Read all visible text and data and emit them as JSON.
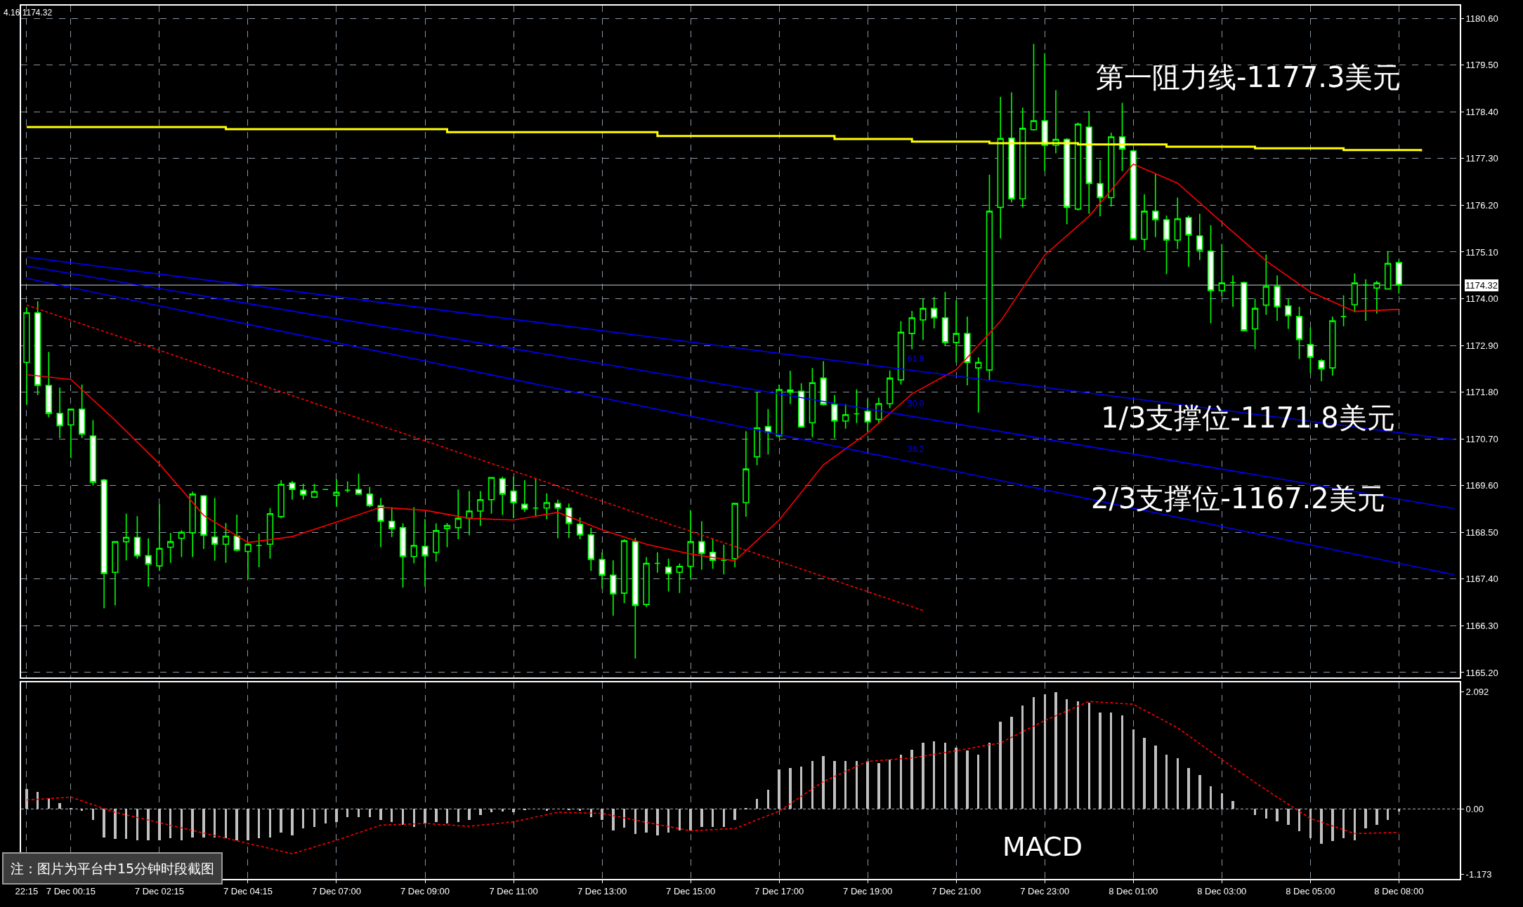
{
  "chart_data": [
    {
      "type": "candlestick",
      "color": "#00ff00",
      "categories": [
        "22:15",
        null,
        null,
        null,
        "7 Dec 00:15",
        null,
        null,
        null,
        null,
        null,
        null,
        null,
        "7 Dec 02:15",
        null,
        null,
        null,
        null,
        null,
        null,
        null,
        "7 Dec 04:15",
        null,
        null,
        null,
        null,
        null,
        null,
        null,
        "7 Dec 07:00",
        null,
        null,
        null,
        null,
        null,
        null,
        null,
        "7 Dec 09:00",
        null,
        null,
        null,
        null,
        null,
        null,
        null,
        "7 Dec 11:00",
        null,
        null,
        null,
        null,
        null,
        null,
        null,
        "7 Dec 13:00",
        null,
        null,
        null,
        null,
        null,
        null,
        null,
        "7 Dec 15:00",
        null,
        null,
        null,
        null,
        null,
        null,
        null,
        "7 Dec 17:00",
        null,
        null,
        null,
        null,
        null,
        null,
        null,
        "7 Dec 19:00",
        null,
        null,
        null,
        null,
        null,
        null,
        null,
        "7 Dec 21:00",
        null,
        null,
        null,
        null,
        null,
        null,
        null,
        "7 Dec 23:00",
        null,
        null,
        null,
        null,
        null,
        null,
        null,
        "8 Dec 01:00",
        null,
        null,
        null,
        null,
        null,
        null,
        null,
        "8 Dec 03:00",
        null,
        null,
        null,
        null,
        null,
        null,
        null,
        "8 Dec 05:00",
        null,
        null,
        null,
        null,
        null,
        null,
        null,
        "8 Dec 08:00",
        null,
        null,
        null,
        null,
        null
      ],
      "ohlc": [
        [
          1172.5,
          1173.8,
          1171.5,
          1173.67
        ],
        [
          1173.67,
          1173.94,
          1171.73,
          1171.96
        ],
        [
          1171.96,
          1172.75,
          1171.21,
          1171.3
        ],
        [
          1171.3,
          1171.91,
          1170.72,
          1171.01
        ],
        [
          1171.03,
          1171.4,
          1170.25,
          1171.4
        ],
        [
          1171.4,
          1171.98,
          1170.72,
          1170.81
        ],
        [
          1170.77,
          1171.14,
          1169.6,
          1169.68
        ],
        [
          1169.73,
          1169.76,
          1166.71,
          1167.53
        ],
        [
          1167.56,
          1168.28,
          1166.78,
          1168.28
        ],
        [
          1168.28,
          1168.94,
          1167.84,
          1168.38
        ],
        [
          1168.38,
          1168.88,
          1167.88,
          1167.95
        ],
        [
          1167.95,
          1168.36,
          1167.22,
          1167.75
        ],
        [
          1167.71,
          1169.16,
          1167.59,
          1168.12
        ],
        [
          1168.15,
          1168.49,
          1167.78,
          1168.28
        ],
        [
          1168.36,
          1168.55,
          1167.92,
          1168.5
        ],
        [
          1168.49,
          1169.46,
          1167.92,
          1169.4
        ],
        [
          1169.36,
          1169.38,
          1168.11,
          1168.43
        ],
        [
          1168.39,
          1169.31,
          1167.83,
          1168.22
        ],
        [
          1168.22,
          1168.72,
          1167.78,
          1168.41
        ],
        [
          1168.41,
          1168.92,
          1168.05,
          1168.08
        ],
        [
          1168.05,
          1168.25,
          1167.4,
          1168.22
        ],
        [
          1168.19,
          1168.47,
          1167.68,
          1168.19
        ],
        [
          1168.22,
          1169.07,
          1167.88,
          1168.94
        ],
        [
          1168.87,
          1169.73,
          1168.83,
          1169.63
        ],
        [
          1169.66,
          1169.71,
          1169.27,
          1169.51
        ],
        [
          1169.49,
          1169.64,
          1169.27,
          1169.38
        ],
        [
          1169.33,
          1169.64,
          1169.31,
          1169.46
        ],
        [
          1169.51,
          1169.51,
          1169.51,
          1169.51
        ],
        [
          1169.37,
          1169.75,
          1169.1,
          1169.44
        ],
        [
          1169.49,
          1169.7,
          1169.44,
          1169.49
        ],
        [
          1169.51,
          1169.88,
          1169.4,
          1169.4
        ],
        [
          1169.4,
          1169.57,
          1169.09,
          1169.13
        ],
        [
          1169.13,
          1169.31,
          1168.15,
          1168.76
        ],
        [
          1168.76,
          1169.09,
          1168.39,
          1168.59
        ],
        [
          1168.61,
          1168.71,
          1167.2,
          1167.93
        ],
        [
          1167.93,
          1169.09,
          1167.77,
          1168.19
        ],
        [
          1168.17,
          1168.81,
          1167.22,
          1167.95
        ],
        [
          1168.03,
          1168.71,
          1167.81,
          1168.54
        ],
        [
          1168.59,
          1168.72,
          1168.15,
          1168.66
        ],
        [
          1168.61,
          1169.51,
          1168.34,
          1168.83
        ],
        [
          1168.83,
          1169.47,
          1168.43,
          1169.0
        ],
        [
          1169.0,
          1169.47,
          1168.65,
          1169.27
        ],
        [
          1169.27,
          1169.79,
          1168.94,
          1169.79
        ],
        [
          1169.76,
          1169.81,
          1168.91,
          1169.4
        ],
        [
          1169.47,
          1169.81,
          1168.83,
          1169.2
        ],
        [
          1169.16,
          1169.73,
          1168.98,
          1169.05
        ],
        [
          1169.07,
          1169.76,
          1168.87,
          1169.07
        ],
        [
          1169.07,
          1169.42,
          1168.81,
          1169.2
        ],
        [
          1169.18,
          1169.27,
          1168.36,
          1169.07
        ],
        [
          1169.07,
          1169.18,
          1168.37,
          1168.71
        ],
        [
          1168.69,
          1168.85,
          1168.34,
          1168.44
        ],
        [
          1168.44,
          1168.61,
          1167.59,
          1167.86
        ],
        [
          1167.86,
          1168.03,
          1167.18,
          1167.49
        ],
        [
          1167.49,
          1167.84,
          1166.54,
          1167.05
        ],
        [
          1167.07,
          1168.34,
          1166.83,
          1168.3
        ],
        [
          1168.28,
          1168.37,
          1165.53,
          1166.78
        ],
        [
          1166.8,
          1167.92,
          1166.74,
          1167.77
        ],
        [
          1167.77,
          1168.03,
          1167.55,
          1167.77
        ],
        [
          1167.68,
          1167.88,
          1167.11,
          1167.53
        ],
        [
          1167.56,
          1167.77,
          1167.07,
          1167.7
        ],
        [
          1167.7,
          1169.02,
          1167.42,
          1168.28
        ],
        [
          1168.28,
          1168.76,
          1167.62,
          1168.0
        ],
        [
          1168.03,
          1168.36,
          1167.64,
          1167.84
        ],
        [
          1167.84,
          1168.21,
          1167.51,
          1167.84
        ],
        [
          1167.88,
          1169.18,
          1167.68,
          1169.18
        ],
        [
          1169.2,
          1170.88,
          1168.87,
          1169.99
        ],
        [
          1170.28,
          1171.8,
          1170.08,
          1170.96
        ],
        [
          1170.99,
          1171.4,
          1170.33,
          1170.86
        ],
        [
          1170.77,
          1171.98,
          1170.74,
          1171.86
        ],
        [
          1171.85,
          1172.3,
          1171.52,
          1171.8
        ],
        [
          1171.82,
          1172.01,
          1170.96,
          1170.98
        ],
        [
          1171.08,
          1172.37,
          1170.74,
          1172.02
        ],
        [
          1172.13,
          1172.53,
          1171.49,
          1171.51
        ],
        [
          1171.51,
          1171.73,
          1170.72,
          1171.12
        ],
        [
          1171.12,
          1171.52,
          1170.94,
          1171.27
        ],
        [
          1171.29,
          1171.87,
          1171.07,
          1171.29
        ],
        [
          1171.35,
          1171.64,
          1170.86,
          1171.1
        ],
        [
          1171.16,
          1171.67,
          1171.05,
          1171.53
        ],
        [
          1171.53,
          1172.31,
          1171.42,
          1172.13
        ],
        [
          1172.09,
          1173.47,
          1171.98,
          1173.21
        ],
        [
          1173.18,
          1173.71,
          1172.81,
          1173.55
        ],
        [
          1173.5,
          1173.99,
          1173.03,
          1173.77
        ],
        [
          1173.77,
          1174.04,
          1173.3,
          1173.55
        ],
        [
          1173.55,
          1174.16,
          1172.9,
          1172.97
        ],
        [
          1172.97,
          1173.96,
          1172.5,
          1173.18
        ],
        [
          1173.18,
          1173.58,
          1171.96,
          1172.5
        ],
        [
          1172.37,
          1172.62,
          1171.32,
          1172.5
        ],
        [
          1172.32,
          1176.92,
          1172.09,
          1176.06
        ],
        [
          1176.15,
          1178.75,
          1175.42,
          1177.77
        ],
        [
          1177.78,
          1178.86,
          1176.27,
          1176.35
        ],
        [
          1176.35,
          1178.5,
          1176.15,
          1178.01
        ],
        [
          1177.98,
          1180.0,
          1177.96,
          1178.19
        ],
        [
          1178.19,
          1179.78,
          1177.0,
          1177.61
        ],
        [
          1177.61,
          1178.91,
          1177.42,
          1177.75
        ],
        [
          1177.75,
          1177.78,
          1175.75,
          1176.15
        ],
        [
          1176.11,
          1178.15,
          1176.08,
          1178.11
        ],
        [
          1178.04,
          1178.42,
          1176.0,
          1176.71
        ],
        [
          1176.71,
          1177.27,
          1175.94,
          1176.38
        ],
        [
          1176.38,
          1177.91,
          1176.17,
          1177.81
        ],
        [
          1177.81,
          1178.61,
          1177.01,
          1177.52
        ],
        [
          1177.48,
          1177.5,
          1175.4,
          1175.4
        ],
        [
          1175.4,
          1176.46,
          1175.14,
          1176.06
        ],
        [
          1176.06,
          1176.94,
          1175.45,
          1175.86
        ],
        [
          1175.86,
          1175.96,
          1174.58,
          1175.38
        ],
        [
          1175.38,
          1176.38,
          1175.17,
          1175.88
        ],
        [
          1175.91,
          1175.96,
          1174.75,
          1175.5
        ],
        [
          1175.48,
          1176.0,
          1174.91,
          1175.14
        ],
        [
          1175.12,
          1175.73,
          1173.42,
          1174.19
        ],
        [
          1174.19,
          1175.29,
          1174.06,
          1174.37
        ],
        [
          1174.38,
          1174.55,
          1173.81,
          1174.38
        ],
        [
          1174.38,
          1174.4,
          1173.23,
          1173.25
        ],
        [
          1173.29,
          1174.0,
          1172.81,
          1173.77
        ],
        [
          1173.85,
          1175.04,
          1173.62,
          1174.29
        ],
        [
          1174.29,
          1174.55,
          1173.48,
          1173.81
        ],
        [
          1173.83,
          1174.0,
          1173.29,
          1173.6
        ],
        [
          1173.58,
          1173.81,
          1172.58,
          1173.04
        ],
        [
          1172.92,
          1173.32,
          1172.25,
          1172.62
        ],
        [
          1172.54,
          1172.58,
          1172.06,
          1172.35
        ],
        [
          1172.37,
          1173.58,
          1172.19,
          1173.48
        ],
        [
          1173.58,
          1174.08,
          1173.35,
          1173.58
        ],
        [
          1173.86,
          1174.6,
          1173.68,
          1174.37
        ],
        [
          1174.32,
          1174.46,
          1173.48,
          1174.32
        ],
        [
          1174.25,
          1174.42,
          1173.65,
          1174.37
        ],
        [
          1174.23,
          1175.12,
          1174.23,
          1174.83
        ],
        [
          1174.85,
          1174.92,
          1174.12,
          1174.32
        ],
        null,
        null,
        null,
        null,
        null
      ],
      "series": [
        {
          "type": "line",
          "color": "#ff0000",
          "values": [
            1172.21,
            null,
            null,
            null,
            1172.1,
            null,
            null,
            null,
            1171.14,
            null,
            null,
            null,
            1170.11,
            null,
            null,
            null,
            1168.9,
            null,
            null,
            null,
            1168.26,
            null,
            null,
            null,
            1168.4,
            null,
            null,
            null,
            1168.74,
            null,
            null,
            null,
            1169.09,
            null,
            null,
            null,
            1169.02,
            null,
            null,
            null,
            1168.83,
            null,
            null,
            null,
            1168.79,
            null,
            null,
            null,
            1168.97,
            null,
            null,
            null,
            1168.56,
            null,
            null,
            null,
            1168.22,
            null,
            null,
            null,
            1167.99,
            null,
            null,
            null,
            1167.83,
            null,
            null,
            null,
            1168.79,
            null,
            null,
            null,
            1170.09,
            null,
            null,
            null,
            1170.84,
            null,
            null,
            null,
            1171.76,
            null,
            null,
            null,
            1172.33,
            null,
            null,
            null,
            1173.47,
            null,
            null,
            null,
            1175.03,
            null,
            null,
            null,
            1175.94,
            null,
            null,
            null,
            1177.17,
            null,
            null,
            null,
            1176.72,
            null,
            null,
            null,
            1175.8,
            null,
            null,
            null,
            1174.89,
            null,
            null,
            null,
            1174.16,
            null,
            null,
            null,
            1173.7,
            null,
            null,
            null,
            1173.75,
            null,
            null,
            null,
            null,
            null
          ]
        },
        {
          "type": "step",
          "color": "#ffff00",
          "values": [
            1178.04,
            null,
            null,
            null,
            null,
            null,
            null,
            null,
            null,
            null,
            null,
            null,
            null,
            null,
            null,
            null,
            null,
            null,
            1177.99,
            null,
            null,
            null,
            null,
            null,
            null,
            null,
            null,
            null,
            null,
            null,
            null,
            null,
            null,
            null,
            null,
            null,
            null,
            null,
            1177.92,
            null,
            null,
            null,
            null,
            null,
            null,
            null,
            null,
            null,
            null,
            null,
            null,
            null,
            null,
            null,
            null,
            null,
            null,
            1177.83,
            null,
            null,
            null,
            null,
            null,
            null,
            null,
            null,
            null,
            null,
            null,
            null,
            null,
            null,
            null,
            1177.76,
            null,
            null,
            null,
            null,
            null,
            null,
            1177.7,
            null,
            null,
            null,
            null,
            null,
            null,
            1177.66,
            null,
            null,
            null,
            null,
            null,
            null,
            null,
            1177.63,
            null,
            null,
            null,
            null,
            null,
            null,
            null,
            1177.58,
            null,
            null,
            null,
            null,
            null,
            null,
            null,
            1177.54,
            null,
            null,
            null,
            null,
            null,
            null,
            null,
            1177.5,
            null,
            null,
            null,
            null,
            null,
            null,
            1177.47,
            null,
            null,
            null
          ]
        },
        {
          "type": "line",
          "color": "#0000ff",
          "values": [
            1174.98,
            null,
            null,
            null,
            null,
            null,
            null,
            null,
            null,
            null,
            null,
            null,
            null,
            null,
            null,
            null,
            null,
            null,
            null,
            null,
            null,
            null,
            null,
            null,
            null,
            null,
            null,
            null,
            null,
            null,
            null,
            null,
            null,
            null,
            null,
            null,
            null,
            null,
            null,
            null,
            null,
            null,
            null,
            null,
            null,
            null,
            null,
            null,
            null,
            null,
            null,
            null,
            null,
            null,
            null,
            null,
            null,
            null,
            null,
            null,
            null,
            null,
            null,
            null,
            null,
            null,
            null,
            null,
            null,
            null,
            null,
            null,
            null,
            null,
            null,
            null,
            null,
            null,
            null,
            null,
            null,
            null,
            null,
            null,
            null,
            null,
            null,
            null,
            null,
            null,
            null,
            null,
            null,
            null,
            null,
            null,
            null,
            null,
            null,
            null,
            null,
            null,
            null,
            null,
            null,
            null,
            null,
            null,
            null,
            null,
            null,
            null,
            null,
            null,
            null,
            null,
            null,
            null,
            null,
            null,
            null,
            null,
            null,
            null,
            null,
            null,
            null,
            null,
            null,
            1170.68
          ]
        },
        {
          "type": "line",
          "color": "#0000ff",
          "values": [
            1174.77,
            null,
            null,
            null,
            null,
            null,
            null,
            null,
            null,
            null,
            null,
            null,
            null,
            null,
            null,
            null,
            null,
            null,
            null,
            null,
            null,
            null,
            null,
            null,
            null,
            null,
            null,
            null,
            null,
            null,
            null,
            null,
            null,
            null,
            null,
            null,
            null,
            null,
            null,
            null,
            null,
            null,
            null,
            null,
            null,
            null,
            null,
            null,
            null,
            null,
            null,
            null,
            null,
            null,
            null,
            null,
            null,
            null,
            null,
            null,
            null,
            null,
            null,
            null,
            null,
            null,
            null,
            null,
            null,
            null,
            null,
            null,
            null,
            null,
            null,
            null,
            null,
            null,
            null,
            null,
            null,
            null,
            null,
            null,
            null,
            null,
            null,
            null,
            null,
            null,
            null,
            null,
            null,
            null,
            null,
            null,
            null,
            null,
            null,
            null,
            null,
            null,
            null,
            null,
            null,
            null,
            null,
            null,
            null,
            null,
            null,
            null,
            null,
            null,
            null,
            null,
            null,
            null,
            null,
            null,
            null,
            null,
            null,
            null,
            null,
            null,
            null,
            null,
            null,
            1169.06
          ]
        },
        {
          "type": "line",
          "color": "#0000ff",
          "values": [
            1174.48,
            null,
            null,
            null,
            null,
            null,
            null,
            null,
            null,
            null,
            null,
            null,
            null,
            null,
            null,
            null,
            null,
            null,
            null,
            null,
            null,
            null,
            null,
            null,
            null,
            null,
            null,
            null,
            null,
            null,
            null,
            null,
            null,
            null,
            null,
            null,
            null,
            null,
            null,
            null,
            null,
            null,
            null,
            null,
            null,
            null,
            null,
            null,
            null,
            null,
            null,
            null,
            null,
            null,
            null,
            null,
            null,
            null,
            null,
            null,
            null,
            null,
            null,
            null,
            null,
            null,
            null,
            null,
            null,
            null,
            null,
            null,
            null,
            null,
            null,
            null,
            null,
            null,
            null,
            null,
            null,
            null,
            null,
            null,
            null,
            null,
            null,
            null,
            null,
            null,
            null,
            null,
            null,
            null,
            null,
            null,
            null,
            null,
            null,
            null,
            null,
            null,
            null,
            null,
            null,
            null,
            null,
            null,
            null,
            null,
            null,
            null,
            null,
            null,
            null,
            null,
            null,
            null,
            null,
            null,
            null,
            null,
            null,
            null,
            null,
            null,
            null,
            null,
            null,
            1167.5
          ]
        },
        {
          "type": "line",
          "color": "#ff0000",
          "line_style": "dashed",
          "values": [
            1173.85,
            null,
            null,
            null,
            null,
            null,
            null,
            null,
            null,
            null,
            null,
            null,
            null,
            null,
            null,
            null,
            null,
            null,
            null,
            null,
            null,
            null,
            null,
            null,
            null,
            null,
            null,
            null,
            null,
            null,
            null,
            null,
            null,
            null,
            null,
            null,
            null,
            null,
            null,
            null,
            null,
            null,
            null,
            null,
            null,
            null,
            null,
            null,
            null,
            null,
            null,
            null,
            null,
            null,
            null,
            null,
            null,
            null,
            null,
            null,
            null,
            null,
            null,
            null,
            null,
            null,
            null,
            null,
            null,
            null,
            null,
            null,
            null,
            null,
            null,
            null,
            null,
            null,
            null,
            null,
            null,
            1166.66,
            null,
            null,
            null,
            null,
            null,
            null,
            null,
            null,
            null,
            null,
            null,
            null,
            null,
            null,
            null,
            null,
            null,
            null,
            null,
            null,
            null,
            null,
            null,
            null,
            null,
            null,
            null,
            null,
            null,
            null,
            null,
            null,
            null,
            null,
            null,
            null,
            null,
            null,
            null,
            null,
            null,
            null,
            null,
            null,
            null,
            null,
            null,
            null
          ]
        }
      ],
      "ylim": [
        1165.09,
        1180.9
      ],
      "yticks": [
        {
          "value": 1165.2,
          "label": "1165.20"
        },
        {
          "value": 1166.3,
          "label": "1166.30"
        },
        {
          "value": 1167.4,
          "label": "1167.40"
        },
        {
          "value": 1168.5,
          "label": "1168.50"
        },
        {
          "value": 1169.6,
          "label": "1169.60"
        },
        {
          "value": 1170.7,
          "label": "1170.70"
        },
        {
          "value": 1171.8,
          "label": "1171.80"
        },
        {
          "value": 1172.9,
          "label": "1172.90"
        },
        {
          "value": 1174.0,
          "label": "1174.00"
        },
        {
          "value": 1175.1,
          "label": "1175.10"
        },
        {
          "value": 1176.2,
          "label": "1176.20"
        },
        {
          "value": 1177.3,
          "label": "1177.30"
        },
        {
          "value": 1178.4,
          "label": "1178.40"
        },
        {
          "value": 1179.5,
          "label": "1179.50"
        },
        {
          "value": 1180.6,
          "label": "1180.60"
        }
      ],
      "ref_lines": [
        {
          "axis": "y",
          "value": 1174.32,
          "label": "1174.32",
          "color": "#a0a8b0"
        }
      ],
      "annotations": [
        "4.16 1174.32",
        "第一阻力线-1177.3美元",
        "1/3支撑位-1171.8美元",
        "2/3支撑位-1167.2美元",
        "61.8",
        "50.0",
        "38.2"
      ],
      "grid": true,
      "tick_labels": "y"
    },
    {
      "type": "bar",
      "color": "#c0c0c0",
      "categories": [
        "22:15",
        null,
        null,
        null,
        "7 Dec 00:15",
        null,
        null,
        null,
        null,
        null,
        null,
        null,
        "7 Dec 02:15",
        null,
        null,
        null,
        null,
        null,
        null,
        null,
        "7 Dec 04:15",
        null,
        null,
        null,
        null,
        null,
        null,
        null,
        "7 Dec 07:00",
        null,
        null,
        null,
        null,
        null,
        null,
        null,
        "7 Dec 09:00",
        null,
        null,
        null,
        null,
        null,
        null,
        null,
        "7 Dec 11:00",
        null,
        null,
        null,
        null,
        null,
        null,
        null,
        "7 Dec 13:00",
        null,
        null,
        null,
        null,
        null,
        null,
        null,
        "7 Dec 15:00",
        null,
        null,
        null,
        null,
        null,
        null,
        null,
        "7 Dec 17:00",
        null,
        null,
        null,
        null,
        null,
        null,
        null,
        "7 Dec 19:00",
        null,
        null,
        null,
        null,
        null,
        null,
        null,
        "7 Dec 21:00",
        null,
        null,
        null,
        null,
        null,
        null,
        null,
        "7 Dec 23:00",
        null,
        null,
        null,
        null,
        null,
        null,
        null,
        "8 Dec 01:00",
        null,
        null,
        null,
        null,
        null,
        null,
        null,
        "8 Dec 03:00",
        null,
        null,
        null,
        null,
        null,
        null,
        null,
        "8 Dec 05:00",
        null,
        null,
        null,
        null,
        null,
        null,
        null,
        "8 Dec 08:00",
        null,
        null,
        null,
        null,
        null
      ],
      "values": [
        0.36,
        0.3,
        0.19,
        0.1,
        0.01,
        -0.04,
        -0.2,
        -0.51,
        -0.54,
        -0.54,
        -0.56,
        -0.56,
        -0.56,
        -0.53,
        -0.56,
        -0.51,
        -0.51,
        -0.51,
        -0.53,
        -0.56,
        -0.56,
        -0.53,
        -0.51,
        -0.42,
        -0.47,
        -0.35,
        -0.32,
        -0.26,
        -0.23,
        -0.15,
        -0.15,
        -0.15,
        -0.2,
        -0.23,
        -0.29,
        -0.32,
        -0.26,
        -0.23,
        -0.26,
        -0.23,
        -0.2,
        -0.11,
        -0.06,
        -0.05,
        -0.06,
        -0.02,
        0.0,
        -0.04,
        0.0,
        -0.02,
        -0.04,
        -0.15,
        -0.2,
        -0.38,
        -0.33,
        -0.45,
        -0.42,
        -0.47,
        -0.42,
        -0.38,
        -0.38,
        -0.32,
        -0.32,
        -0.32,
        -0.2,
        0.02,
        0.18,
        0.34,
        0.7,
        0.73,
        0.76,
        0.86,
        0.94,
        0.86,
        0.85,
        0.86,
        0.85,
        0.82,
        0.88,
        0.97,
        1.06,
        1.18,
        1.21,
        1.18,
        1.09,
        1.04,
        0.97,
        1.18,
        1.56,
        1.65,
        1.85,
        2.0,
        2.05,
        2.08,
        1.96,
        1.92,
        1.9,
        1.72,
        1.72,
        1.67,
        1.42,
        1.27,
        1.13,
        0.97,
        0.91,
        0.73,
        0.61,
        0.41,
        0.28,
        0.14,
        0.0,
        -0.11,
        -0.17,
        -0.22,
        -0.29,
        -0.4,
        -0.53,
        -0.62,
        -0.58,
        -0.53,
        -0.56,
        -0.35,
        -0.29,
        -0.2,
        -0.05,
        null,
        null,
        null,
        null,
        null
      ],
      "series": [
        {
          "type": "line",
          "color": "#ff0000",
          "line_style": "dashed",
          "values": [
            0.16,
            null,
            null,
            null,
            0.21,
            null,
            null,
            null,
            -0.06,
            null,
            null,
            null,
            null,
            null,
            null,
            null,
            null,
            null,
            null,
            null,
            null,
            null,
            null,
            null,
            -0.8,
            null,
            null,
            null,
            -0.56,
            null,
            null,
            null,
            -0.29,
            null,
            null,
            null,
            -0.26,
            null,
            null,
            null,
            -0.31,
            null,
            null,
            null,
            -0.23,
            null,
            null,
            null,
            -0.06,
            null,
            null,
            null,
            -0.08,
            null,
            null,
            null,
            -0.24,
            null,
            null,
            null,
            -0.39,
            null,
            null,
            null,
            -0.35,
            null,
            null,
            null,
            -0.04,
            null,
            null,
            null,
            0.49,
            null,
            null,
            null,
            0.85,
            null,
            null,
            null,
            0.91,
            null,
            null,
            null,
            1.04,
            null,
            null,
            null,
            1.18,
            null,
            null,
            null,
            1.58,
            null,
            null,
            null,
            1.92,
            null,
            null,
            null,
            1.87,
            null,
            null,
            null,
            1.45,
            null,
            null,
            null,
            0.88,
            null,
            null,
            null,
            0.34,
            null,
            null,
            null,
            -0.17,
            null,
            null,
            null,
            -0.44,
            null,
            null,
            null,
            -0.42,
            null,
            null,
            null,
            null,
            null
          ]
        }
      ],
      "ylim": [
        -1.25,
        2.26
      ],
      "yticks": [
        2.092,
        {
          "value": 0,
          "label": "0.00"
        },
        -1.173
      ],
      "ref_lines": [
        {
          "axis": "y",
          "value": 0,
          "color": "#8a96a3",
          "line_style": "dashed"
        }
      ],
      "annotations": [
        "MACD",
        "注：图片为平台中15分钟时段截图"
      ],
      "grid": "x"
    }
  ]
}
